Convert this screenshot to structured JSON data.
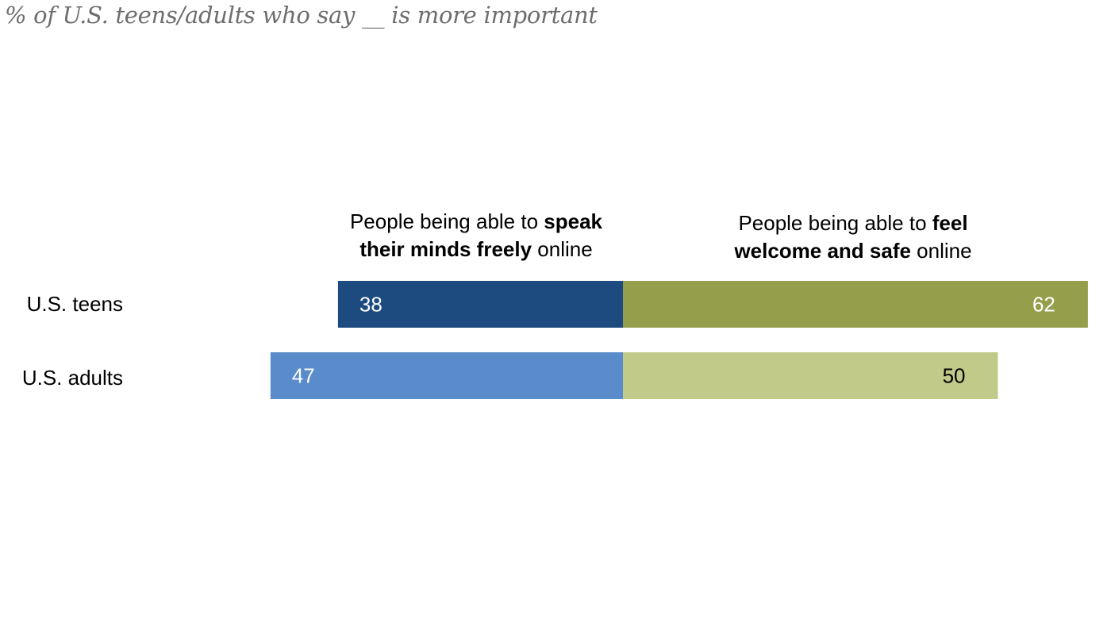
{
  "subtitle": "% of U.S. teens/adults who say __ is more important",
  "headers": {
    "left": {
      "prefix": "People being able to ",
      "bold": "speak their minds freely",
      "suffix": " online"
    },
    "right": {
      "prefix": "People being able to ",
      "bold": "feel welcome and safe",
      "suffix": " online"
    }
  },
  "chart_data": {
    "type": "bar",
    "orientation": "horizontal-diverging",
    "title": "% of U.S. teens/adults who say __ is more important",
    "categories": [
      "U.S. teens",
      "U.S. adults"
    ],
    "series": [
      {
        "name": "People being able to speak their minds freely online",
        "values": [
          38,
          47
        ],
        "colors": [
          "#1d4a7f",
          "#5a8ccb"
        ],
        "label_colors": [
          "#ffffff",
          "#ffffff"
        ]
      },
      {
        "name": "People being able to feel welcome and safe online",
        "values": [
          62,
          50
        ],
        "colors": [
          "#959f4b",
          "#c1ca89"
        ],
        "label_colors": [
          "#ffffff",
          "#000000"
        ]
      }
    ],
    "xlim": [
      -47,
      62
    ]
  }
}
